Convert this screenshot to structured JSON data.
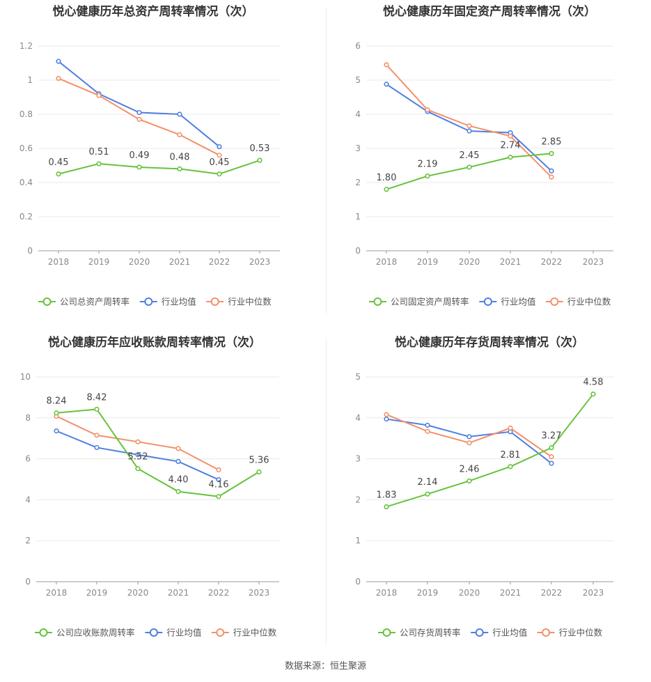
{
  "source_label": "数据来源：恒生聚源",
  "colors": {
    "company": "#67c23a",
    "avg": "#4f7fe0",
    "median": "#f3906a"
  },
  "chart_data": [
    {
      "type": "line",
      "title": "悦心健康历年总资产周转率情况（次）",
      "categories": [
        "2018",
        "2019",
        "2020",
        "2021",
        "2022",
        "2023"
      ],
      "ylim": [
        0,
        1.2
      ],
      "yticks": [
        "0",
        "0.2",
        "0.4",
        "0.6",
        "0.8",
        "1",
        "1.2"
      ],
      "ytick_values": [
        0,
        0.2,
        0.4,
        0.6,
        0.8,
        1,
        1.2
      ],
      "series": [
        {
          "name": "公司总资产周转率",
          "key": "company",
          "values": [
            0.45,
            0.51,
            0.49,
            0.48,
            0.45,
            0.53
          ],
          "labels": [
            "0.45",
            "0.51",
            "0.49",
            "0.48",
            "0.45",
            "0.53"
          ]
        },
        {
          "name": "行业均值",
          "key": "avg",
          "values": [
            1.11,
            0.92,
            0.81,
            0.8,
            0.61,
            null
          ]
        },
        {
          "name": "行业中位数",
          "key": "median",
          "values": [
            1.01,
            0.91,
            0.77,
            0.68,
            0.56,
            null
          ]
        }
      ]
    },
    {
      "type": "line",
      "title": "悦心健康历年固定资产周转率情况（次）",
      "categories": [
        "2018",
        "2019",
        "2020",
        "2021",
        "2022",
        "2023"
      ],
      "ylim": [
        0,
        6
      ],
      "yticks": [
        "0",
        "1",
        "2",
        "3",
        "4",
        "5",
        "6"
      ],
      "ytick_values": [
        0,
        1,
        2,
        3,
        4,
        5,
        6
      ],
      "series": [
        {
          "name": "公司固定资产周转率",
          "key": "company",
          "values": [
            1.8,
            2.19,
            2.45,
            2.74,
            2.85,
            null
          ],
          "labels": [
            "1.80",
            "2.19",
            "2.45",
            "2.74",
            "2.85",
            ""
          ]
        },
        {
          "name": "行业均值",
          "key": "avg",
          "values": [
            4.88,
            4.08,
            3.51,
            3.46,
            2.34,
            null
          ]
        },
        {
          "name": "行业中位数",
          "key": "median",
          "values": [
            5.45,
            4.13,
            3.66,
            3.36,
            2.16,
            null
          ]
        }
      ]
    },
    {
      "type": "line",
      "title": "悦心健康历年应收账款周转率情况（次）",
      "categories": [
        "2018",
        "2019",
        "2020",
        "2021",
        "2022",
        "2023"
      ],
      "ylim": [
        0,
        10
      ],
      "yticks": [
        "0",
        "2",
        "4",
        "6",
        "8",
        "10"
      ],
      "ytick_values": [
        0,
        2,
        4,
        6,
        8,
        10
      ],
      "series": [
        {
          "name": "公司应收账款周转率",
          "key": "company",
          "values": [
            8.24,
            8.42,
            5.52,
            4.4,
            4.16,
            5.36
          ],
          "labels": [
            "8.24",
            "8.42",
            "5.52",
            "4.40",
            "4.16",
            "5.36"
          ]
        },
        {
          "name": "行业均值",
          "key": "avg",
          "values": [
            7.36,
            6.55,
            6.2,
            5.87,
            4.98,
            null
          ]
        },
        {
          "name": "行业中位数",
          "key": "median",
          "values": [
            8.08,
            7.15,
            6.83,
            6.5,
            5.46,
            null
          ]
        }
      ]
    },
    {
      "type": "line",
      "title": "悦心健康历年存货周转率情况（次）",
      "categories": [
        "2018",
        "2019",
        "2020",
        "2021",
        "2022",
        "2023"
      ],
      "ylim": [
        0,
        5
      ],
      "yticks": [
        "0",
        "1",
        "2",
        "3",
        "4",
        "5"
      ],
      "ytick_values": [
        0,
        1,
        2,
        3,
        4,
        5
      ],
      "series": [
        {
          "name": "公司存货周转率",
          "key": "company",
          "values": [
            1.83,
            2.14,
            2.46,
            2.81,
            3.27,
            4.58
          ],
          "labels": [
            "1.83",
            "2.14",
            "2.46",
            "2.81",
            "3.27",
            "4.58"
          ]
        },
        {
          "name": "行业均值",
          "key": "avg",
          "values": [
            3.97,
            3.82,
            3.54,
            3.66,
            2.89,
            null
          ]
        },
        {
          "name": "行业中位数",
          "key": "median",
          "values": [
            4.08,
            3.67,
            3.39,
            3.75,
            3.05,
            null
          ]
        }
      ]
    }
  ]
}
